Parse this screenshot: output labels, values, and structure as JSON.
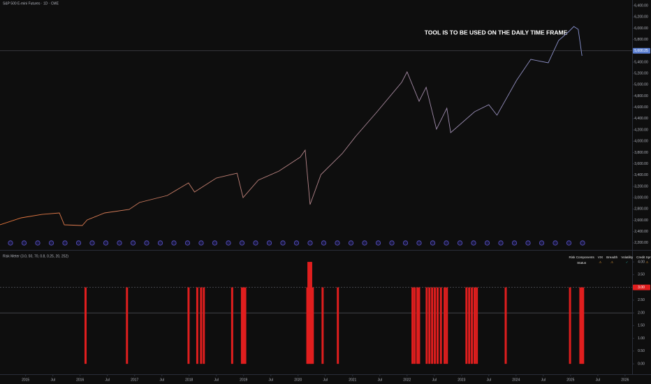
{
  "chart_data": [
    {
      "type": "line",
      "title": "S&P 500 E-mini Futures · 1D · CME",
      "annotation": "TOOL IS TO BE USED ON THE DAILY TIME FRAME",
      "gradient": [
        "#e8763a",
        "#7d93dc"
      ],
      "x": [
        2014.53,
        2014.92,
        2015.3,
        2015.62,
        2015.71,
        2016.04,
        2016.13,
        2016.45,
        2016.9,
        2017.09,
        2017.6,
        2017.99,
        2018.1,
        2018.5,
        2018.88,
        2018.99,
        2019.27,
        2019.65,
        2020.04,
        2020.13,
        2020.22,
        2020.42,
        2020.81,
        2021.06,
        2021.45,
        2021.9,
        2022.0,
        2022.22,
        2022.35,
        2022.54,
        2022.73,
        2022.8,
        2023.24,
        2023.5,
        2023.65,
        2024.01,
        2024.27,
        2024.59,
        2024.78,
        2024.97,
        2025.06,
        2025.14,
        2025.21
      ],
      "values": [
        2520,
        2644,
        2705,
        2730,
        2520,
        2508,
        2607,
        2730,
        2792,
        2916,
        3039,
        3262,
        3101,
        3348,
        3435,
        3002,
        3311,
        3472,
        3719,
        3843,
        2879,
        3410,
        3781,
        4090,
        4522,
        5042,
        5227,
        4708,
        4955,
        4213,
        4584,
        4152,
        4522,
        4646,
        4461,
        5079,
        5449,
        5388,
        5783,
        5944,
        6030,
        5981,
        5511
      ],
      "current_value": {
        "value": 5600.25,
        "label": "5,600.25"
      },
      "xlim": [
        2014.53,
        2026.13
      ],
      "ylim": [
        2100,
        6500
      ],
      "yticks": [
        {
          "value": 2200,
          "label": "2,200.00"
        },
        {
          "value": 2400,
          "label": "2,400.00"
        },
        {
          "value": 2600,
          "label": "2,600.00"
        },
        {
          "value": 2800,
          "label": "2,800.00"
        },
        {
          "value": 3000,
          "label": "3,000.00"
        },
        {
          "value": 3200,
          "label": "3,200.00"
        },
        {
          "value": 3400,
          "label": "3,400.00"
        },
        {
          "value": 3600,
          "label": "3,600.00"
        },
        {
          "value": 3800,
          "label": "3,800.00"
        },
        {
          "value": 4000,
          "label": "4,000.00"
        },
        {
          "value": 4200,
          "label": "4,200.00"
        },
        {
          "value": 4400,
          "label": "4,400.00"
        },
        {
          "value": 4600,
          "label": "4,600.00"
        },
        {
          "value": 4800,
          "label": "4,800.00"
        },
        {
          "value": 5000,
          "label": "5,000.00"
        },
        {
          "value": 5200,
          "label": "5,200.00"
        },
        {
          "value": 5400,
          "label": "5,400.00"
        },
        {
          "value": 5600,
          "label": "5,600.00"
        },
        {
          "value": 5800,
          "label": "5,800.00"
        },
        {
          "value": 6000,
          "label": "6,000.00"
        },
        {
          "value": 6200,
          "label": "6,200.00"
        },
        {
          "value": 6400,
          "label": "6,400.00"
        }
      ]
    },
    {
      "type": "bar",
      "title": "Risk Meter (3.0, 50, 70, 0.8, 0.25, 20, 252)",
      "color": "#e01e1e",
      "x": [
        2016.1,
        2016.86,
        2017.99,
        2018.15,
        2018.22,
        2018.27,
        2018.79,
        2018.97,
        2019.0,
        2019.03,
        2020.17,
        2020.19,
        2020.22,
        2020.24,
        2020.27,
        2020.45,
        2020.73,
        2022.1,
        2022.14,
        2022.19,
        2022.22,
        2022.36,
        2022.41,
        2022.46,
        2022.51,
        2022.56,
        2022.62,
        2022.69,
        2022.73,
        2023.09,
        2023.14,
        2023.19,
        2023.24,
        2023.28,
        2023.81,
        2024.99,
        2025.18,
        2025.21,
        2025.23
      ],
      "values": [
        3,
        3,
        3,
        3,
        3,
        3,
        3,
        3,
        3,
        3,
        3,
        4,
        4,
        4,
        3,
        3,
        3,
        3,
        3,
        3,
        3,
        3,
        3,
        3,
        3,
        3,
        3,
        3,
        3,
        3,
        3,
        3,
        3,
        3,
        3,
        3,
        3,
        3,
        3
      ],
      "hlines": [
        {
          "value": 3,
          "style": "dashed"
        },
        {
          "value": 2,
          "style": "solid"
        }
      ],
      "current_value": {
        "value": 3,
        "label": "3.00"
      },
      "xlim": [
        2014.53,
        2026.13
      ],
      "ylim": [
        -0.38,
        4.36
      ],
      "yticks": [
        {
          "value": 0,
          "label": "0.00"
        },
        {
          "value": 0.5,
          "label": "0.50"
        },
        {
          "value": 1,
          "label": "1.00"
        },
        {
          "value": 1.5,
          "label": "1.50"
        },
        {
          "value": 2,
          "label": "2.00"
        },
        {
          "value": 2.5,
          "label": "2.50"
        },
        {
          "value": 3,
          "label": "3.00"
        },
        {
          "value": 3.5,
          "label": "3.50"
        },
        {
          "value": 4,
          "label": "4.00"
        }
      ],
      "xticks": [
        {
          "value": 2015,
          "label": "2015"
        },
        {
          "value": 2015.5,
          "label": "Jul"
        },
        {
          "value": 2016,
          "label": "2016"
        },
        {
          "value": 2016.5,
          "label": "Jul"
        },
        {
          "value": 2017,
          "label": "2017"
        },
        {
          "value": 2017.5,
          "label": "Jul"
        },
        {
          "value": 2018,
          "label": "2018"
        },
        {
          "value": 2018.5,
          "label": "Jul"
        },
        {
          "value": 2019,
          "label": "2019"
        },
        {
          "value": 2019.5,
          "label": "Jul"
        },
        {
          "value": 2020,
          "label": "2020"
        },
        {
          "value": 2020.5,
          "label": "Jul"
        },
        {
          "value": 2021,
          "label": "2021"
        },
        {
          "value": 2021.5,
          "label": "Jul"
        },
        {
          "value": 2022,
          "label": "2022"
        },
        {
          "value": 2022.5,
          "label": "Jul"
        },
        {
          "value": 2023,
          "label": "2023"
        },
        {
          "value": 2023.5,
          "label": "Jul"
        },
        {
          "value": 2024,
          "label": "2024"
        },
        {
          "value": 2024.5,
          "label": "Jul"
        },
        {
          "value": 2025,
          "label": "2025"
        },
        {
          "value": 2025.5,
          "label": "Jul"
        },
        {
          "value": 2026,
          "label": "2026"
        }
      ]
    }
  ],
  "status_table": {
    "header": [
      "Risk Components",
      "VIX",
      "Breadth",
      "Volatility",
      "Credit Spreads"
    ],
    "row": [
      "Status",
      "⚠",
      "⚠",
      "✓",
      "⚠"
    ]
  }
}
